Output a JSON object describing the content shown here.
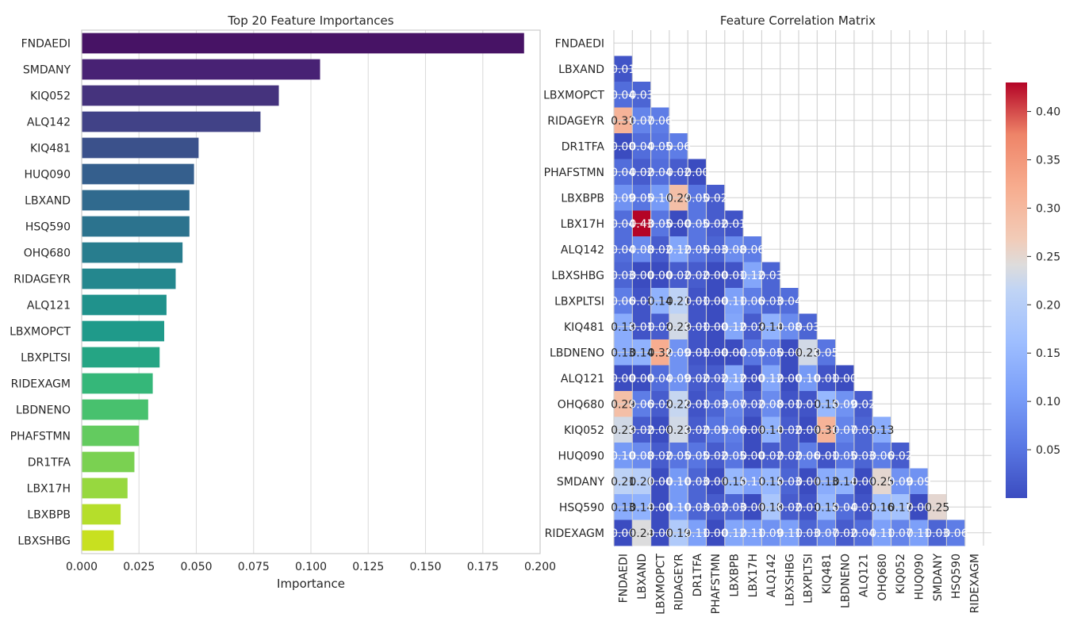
{
  "chart_data": [
    {
      "type": "bar",
      "orientation": "horizontal",
      "title": "Top 20 Feature Importances",
      "xlabel": "Importance",
      "ylabel": "",
      "xlim": [
        0,
        0.2
      ],
      "xticks": [
        "0.000",
        "0.025",
        "0.050",
        "0.075",
        "0.100",
        "0.125",
        "0.150",
        "0.175",
        "0.200"
      ],
      "grid": true,
      "categories": [
        "FNDAEDI",
        "SMDANY",
        "KIQ052",
        "ALQ142",
        "KIQ481",
        "HUQ090",
        "LBXAND",
        "HSQ590",
        "OHQ680",
        "RIDAGEYR",
        "ALQ121",
        "LBXMOPCT",
        "LBXPLTSI",
        "RIDEXAGM",
        "LBDNENO",
        "PHAFSTMN",
        "DR1TFA",
        "LBX17H",
        "LBXBPB",
        "LBXSHBG"
      ],
      "values": [
        0.193,
        0.104,
        0.086,
        0.078,
        0.051,
        0.049,
        0.047,
        0.047,
        0.044,
        0.041,
        0.037,
        0.036,
        0.034,
        0.031,
        0.029,
        0.025,
        0.023,
        0.02,
        0.017,
        0.014
      ],
      "colors": [
        "#471365",
        "#482274",
        "#45337d",
        "#414287",
        "#3b518b",
        "#355f8d",
        "#306a8e",
        "#2c738e",
        "#287d8e",
        "#24878e",
        "#20928c",
        "#1f9a8a",
        "#25a584",
        "#35b779",
        "#48c16e",
        "#63cb5f",
        "#7ad151",
        "#97d83f",
        "#b5de2b",
        "#c8e020"
      ]
    },
    {
      "type": "heatmap",
      "title": "Feature Correlation Matrix",
      "mask": "upper-triangle",
      "labels": [
        "FNDAEDI",
        "LBXAND",
        "LBXMOPCT",
        "RIDAGEYR",
        "DR1TFA",
        "PHAFSTMN",
        "LBXBPB",
        "LBX17H",
        "ALQ142",
        "LBXSHBG",
        "LBXPLTSI",
        "KIQ481",
        "LBDNENO",
        "ALQ121",
        "OHQ680",
        "KIQ052",
        "HUQ090",
        "SMDANY",
        "HSQ590",
        "RIDEXAGM"
      ],
      "values": [
        [],
        [
          0.01
        ],
        [
          0.04,
          0.03
        ],
        [
          0.31,
          0.07,
          0.06
        ],
        [
          0.0,
          0.04,
          0.05,
          0.06
        ],
        [
          0.04,
          0.02,
          0.04,
          0.02,
          0.0
        ],
        [
          0.09,
          0.05,
          0.1,
          0.29,
          0.05,
          0.02
        ],
        [
          0.04,
          0.43,
          0.05,
          0.0,
          0.05,
          0.02,
          0.01
        ],
        [
          0.04,
          0.08,
          0.02,
          0.12,
          0.05,
          0.03,
          0.08,
          0.06
        ],
        [
          0.03,
          0.0,
          0.0,
          0.02,
          0.02,
          0.0,
          0.01,
          0.12,
          0.03
        ],
        [
          0.06,
          0.01,
          0.14,
          0.21,
          0.01,
          0.0,
          0.11,
          0.06,
          0.03,
          0.04
        ],
        [
          0.13,
          0.01,
          0.02,
          0.23,
          0.01,
          0.0,
          0.12,
          0.02,
          0.14,
          0.08,
          0.03
        ],
        [
          0.13,
          0.14,
          0.32,
          0.09,
          0.01,
          0.0,
          0.0,
          0.05,
          0.05,
          0.0,
          0.23,
          0.05
        ],
        [
          0.0,
          0.0,
          0.04,
          0.09,
          0.02,
          0.02,
          0.12,
          0.0,
          0.12,
          0.0,
          0.1,
          0.01,
          0.0
        ],
        [
          0.29,
          0.06,
          0.02,
          0.22,
          0.01,
          0.03,
          0.07,
          0.02,
          0.08,
          0.01,
          0.01,
          0.15,
          0.09,
          0.02
        ],
        [
          0.23,
          0.02,
          0.0,
          0.23,
          0.02,
          0.05,
          0.06,
          0.0,
          0.14,
          0.02,
          0.0,
          0.31,
          0.07,
          0.03,
          0.13
        ],
        [
          0.1,
          0.08,
          0.02,
          0.05,
          0.05,
          0.02,
          0.05,
          0.0,
          0.02,
          0.02,
          0.06,
          0.01,
          0.05,
          0.03,
          0.06,
          0.02
        ],
        [
          0.21,
          0.2,
          0.0,
          0.1,
          0.03,
          0.0,
          0.15,
          0.11,
          0.15,
          0.03,
          0.0,
          0.13,
          0.14,
          0.0,
          0.25,
          0.09,
          0.09
        ],
        [
          0.13,
          0.14,
          0.0,
          0.1,
          0.03,
          0.02,
          0.03,
          0.0,
          0.18,
          0.02,
          0.01,
          0.15,
          0.04,
          0.01,
          0.16,
          0.17,
          0.0,
          0.25
        ],
        [
          0.0,
          0.24,
          0.0,
          0.19,
          0.11,
          0.0,
          0.12,
          0.11,
          0.09,
          0.11,
          0.03,
          0.07,
          0.02,
          0.04,
          0.11,
          0.07,
          0.11,
          0.03,
          0.06
        ]
      ],
      "colorbar": {
        "colormap": "coolwarm",
        "vmin": 0.0,
        "vmax": 0.43,
        "ticks": [
          0.05,
          0.1,
          0.15,
          0.2,
          0.25,
          0.3,
          0.35,
          0.4
        ],
        "tick_labels": [
          "0.05",
          "0.10",
          "0.15",
          "0.20",
          "0.25",
          "0.30",
          "0.35",
          "0.40"
        ]
      },
      "grid": true
    }
  ]
}
